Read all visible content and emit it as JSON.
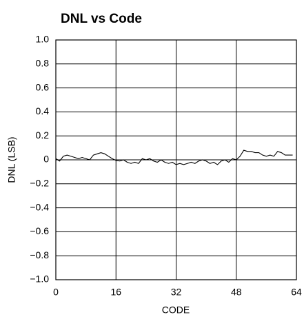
{
  "chart_data": {
    "type": "line",
    "title": "DNL vs Code",
    "xlabel": "CODE",
    "ylabel": "DNL (LSB)",
    "x": [
      0,
      1,
      2,
      3,
      4,
      5,
      6,
      7,
      8,
      9,
      10,
      11,
      12,
      13,
      14,
      15,
      16,
      17,
      18,
      19,
      20,
      21,
      22,
      23,
      24,
      25,
      26,
      27,
      28,
      29,
      30,
      31,
      32,
      33,
      34,
      35,
      36,
      37,
      38,
      39,
      40,
      41,
      42,
      43,
      44,
      45,
      46,
      47,
      48,
      49,
      50,
      51,
      52,
      53,
      54,
      55,
      56,
      57,
      58,
      59,
      60,
      61,
      62,
      63
    ],
    "series": [
      {
        "name": "DNL",
        "color": "#000000",
        "values": [
          0.01,
          -0.01,
          0.03,
          0.04,
          0.03,
          0.02,
          0.01,
          0.02,
          0.01,
          0.0,
          0.04,
          0.05,
          0.06,
          0.05,
          0.03,
          0.01,
          -0.005,
          -0.01,
          0.0,
          -0.02,
          -0.03,
          -0.02,
          -0.03,
          0.01,
          0.0,
          0.01,
          -0.01,
          -0.02,
          0.0,
          -0.02,
          -0.03,
          -0.02,
          -0.04,
          -0.03,
          -0.04,
          -0.03,
          -0.02,
          -0.03,
          -0.01,
          0.0,
          -0.01,
          -0.03,
          -0.02,
          -0.04,
          -0.01,
          0.0,
          -0.02,
          0.01,
          0.0,
          0.03,
          0.08,
          0.07,
          0.07,
          0.06,
          0.06,
          0.04,
          0.03,
          0.04,
          0.03,
          0.07,
          0.06,
          0.04,
          0.04,
          0.04
        ]
      }
    ],
    "xlim": [
      0,
      64
    ],
    "xticks": [
      0,
      16,
      32,
      48,
      64
    ],
    "ylim": [
      -1,
      1
    ],
    "yticks": [
      {
        "value": -1,
        "label": "−1.0"
      },
      {
        "value": -0.8,
        "label": "−0.8"
      },
      {
        "value": -0.6,
        "label": "−0.6"
      },
      {
        "value": -0.4,
        "label": "−0.4"
      },
      {
        "value": -0.2,
        "label": "−0.2"
      },
      0,
      0.2,
      0.4,
      0.6,
      0.8,
      {
        "value": 1,
        "label": "1.0"
      }
    ],
    "grid": true
  }
}
